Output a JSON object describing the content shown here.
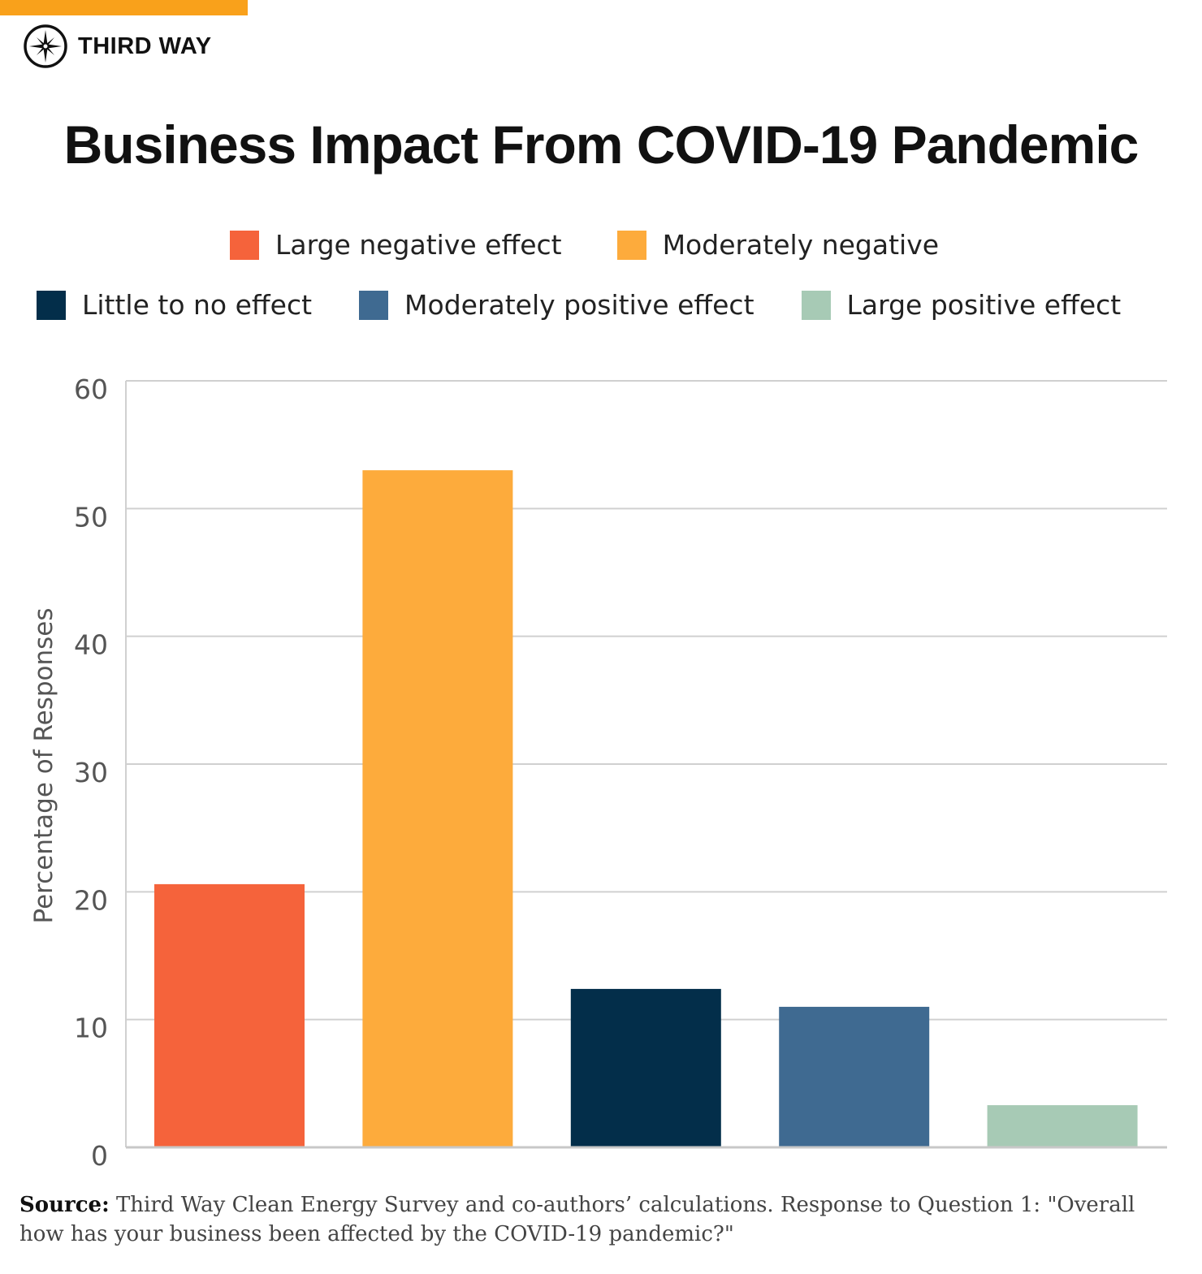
{
  "brand": {
    "name": "THIRD WAY",
    "accent_color": "#f9a11b"
  },
  "chart_data": {
    "type": "bar",
    "title": "Business Impact From COVID-19 Pandemic",
    "ylabel": "Percentage of Responses",
    "xlabel": "",
    "ylim": [
      0,
      60
    ],
    "yticks": [
      "0",
      "10",
      "20",
      "30",
      "40",
      "50",
      "60"
    ],
    "grid": true,
    "legend_placement": "top",
    "categories": [
      "Large negative effect",
      "Moderately negative",
      "Little to no effect",
      "Moderately positive effect",
      "Large positive effect"
    ],
    "values": [
      20.6,
      53.0,
      12.4,
      11.0,
      3.3
    ],
    "colors": [
      "#f5633b",
      "#fdab3c",
      "#032e4a",
      "#3f6a91",
      "#a7cab5"
    ]
  },
  "source": {
    "label": "Source:",
    "text": "Third Way Clean Energy Survey and co-authors’ calculations. Response to Question 1: \"Overall how has your business been affected by the COVID-19 pandemic?\""
  }
}
